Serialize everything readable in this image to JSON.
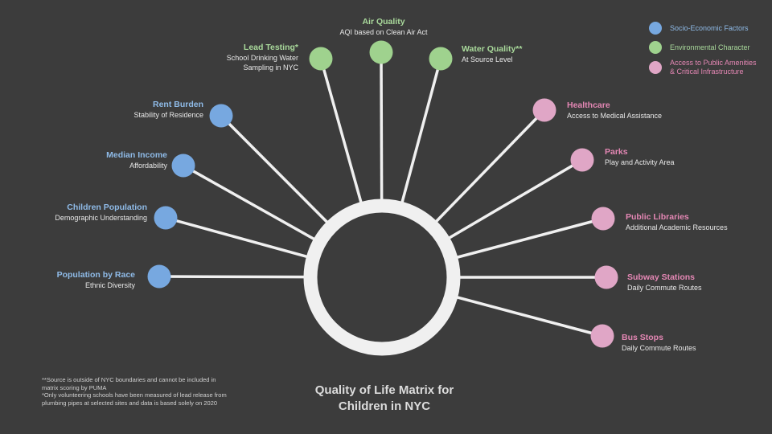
{
  "title_line1": "Quality of Life Matrix for",
  "title_line2": "Children in NYC",
  "colors": {
    "background": "#3c3c3c",
    "ring": "#f0f0f0",
    "socio": "#77a8e0",
    "environmental": "#9fd28e",
    "amenities": "#e0a6c6"
  },
  "legend": [
    {
      "label": "Socio-Economic Factors",
      "category": "socio"
    },
    {
      "label": "Environmental Character",
      "category": "environmental"
    },
    {
      "label_line1": "Access to Public Amenities",
      "label_line2": "& Critical Infrastructure",
      "category": "amenities"
    }
  ],
  "factors": {
    "socio": [
      {
        "title": "Rent Burden",
        "subtitle": "Stability of Residence"
      },
      {
        "title": "Median Income",
        "subtitle": "Affordability"
      },
      {
        "title": "Children Population",
        "subtitle": "Demographic Understanding"
      },
      {
        "title": "Population by Race",
        "subtitle": "Ethnic Diversity"
      }
    ],
    "environmental": [
      {
        "title": "Lead Testing*",
        "subtitle_line1": "School Drinking Water",
        "subtitle_line2": "Sampling in NYC"
      },
      {
        "title": "Air Quality",
        "subtitle": "AQI based on Clean Air Act"
      },
      {
        "title": "Water Quality**",
        "subtitle": "At Source Level"
      }
    ],
    "amenities": [
      {
        "title": "Healthcare",
        "subtitle": "Access to Medical Assistance"
      },
      {
        "title": "Parks",
        "subtitle": "Play and Activity Area"
      },
      {
        "title": "Public Libraries",
        "subtitle": "Additional Academic Resources"
      },
      {
        "title": "Subway Stations",
        "subtitle": "Daily Commute Routes"
      },
      {
        "title": "Bus Stops",
        "subtitle": "Daily Commute Routes"
      }
    ]
  },
  "notes": [
    "**Source is outside of NYC boundaries and cannot be included in matrix scoring by PUMA",
    "*Only volunteering schools have been measured of lead release from plumbing pipes at selected sites and data is based solely on 2020"
  ]
}
